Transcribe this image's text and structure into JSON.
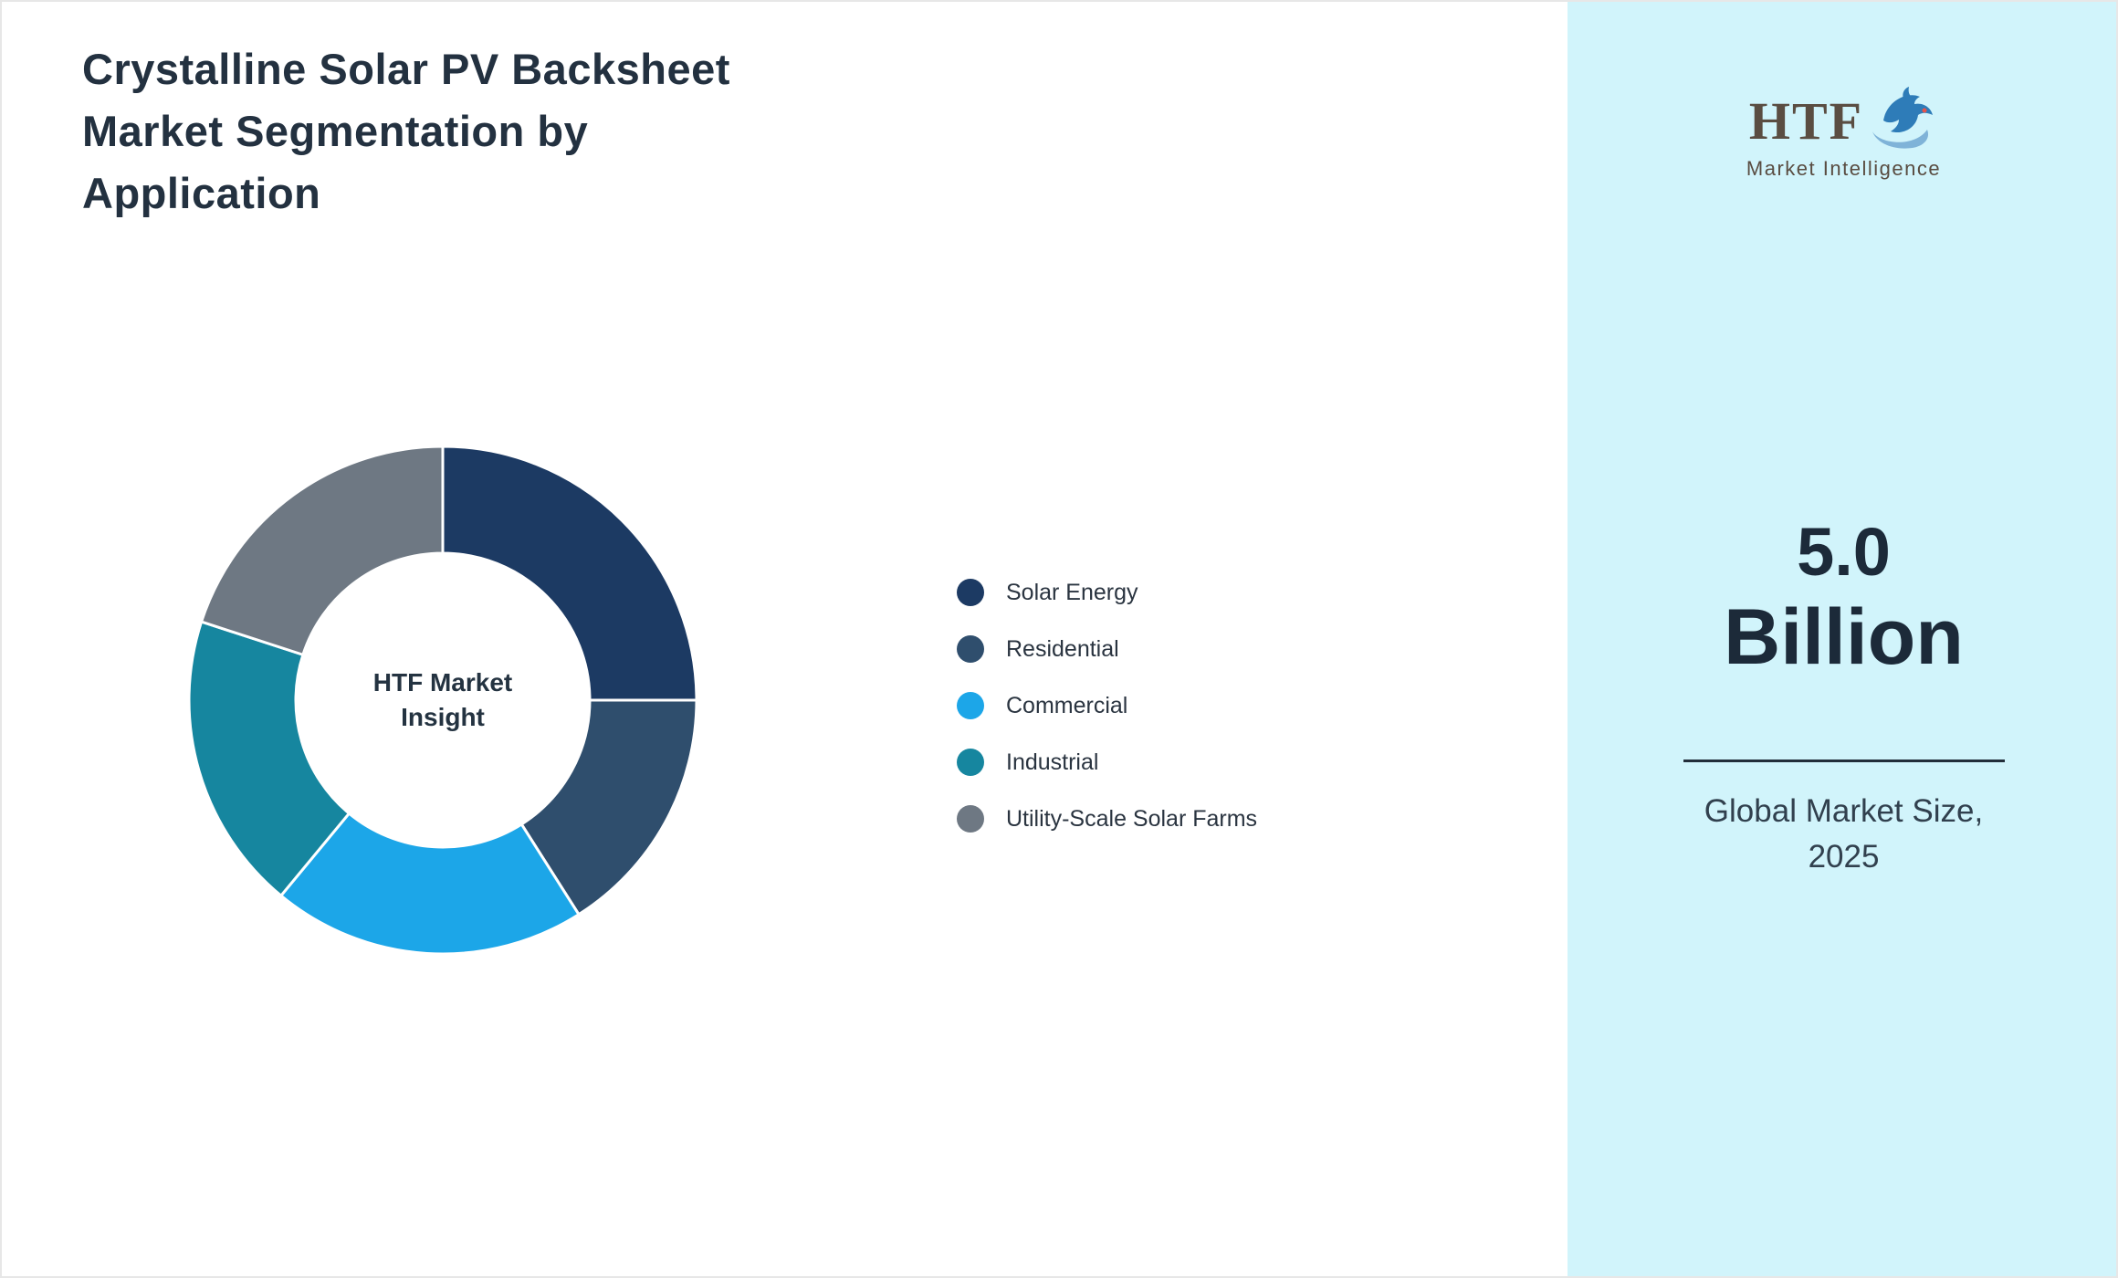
{
  "title": {
    "lines": [
      "Crystalline Solar PV Backsheet",
      "Market Segmentation by",
      "Application"
    ]
  },
  "chart_data": {
    "type": "pie",
    "donut": true,
    "title": "Crystalline Solar PV Backsheet Market Segmentation by Application",
    "center_label": "HTF Market Insight",
    "categories": [
      "Solar Energy",
      "Residential",
      "Commercial",
      "Industrial",
      "Utility-Scale Solar Farms"
    ],
    "values": [
      25,
      16,
      20,
      19,
      20
    ],
    "colors": [
      "#1c3a63",
      "#2f4e6d",
      "#1ca6e8",
      "#16869f",
      "#6e7883"
    ],
    "legend_position": "right",
    "start_angle_deg": 0,
    "direction": "clockwise"
  },
  "sidebar": {
    "background": "#d1f4fb",
    "logo": {
      "text": "HTF",
      "subtext": "Market Intelligence"
    },
    "value_line1": "5.0",
    "value_line2": "Billion",
    "caption_line1": "Global Market Size,",
    "caption_line2": "2025"
  }
}
